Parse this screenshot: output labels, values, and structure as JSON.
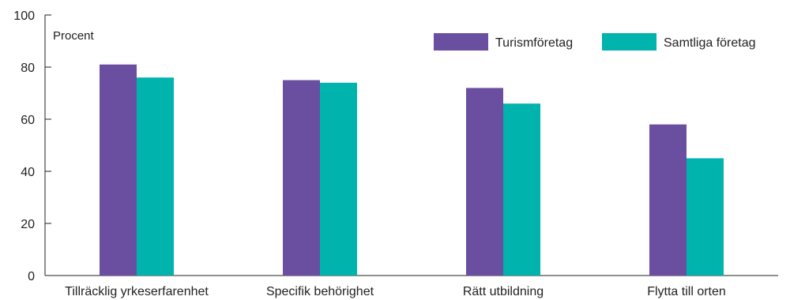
{
  "chart_data": {
    "type": "bar",
    "unit_label": "Procent",
    "categories": [
      "Tillräcklig yrkeserfarenhet",
      "Specifik behörighet",
      "Rätt utbildning",
      "Flytta till orten"
    ],
    "series": [
      {
        "name": "Turismföretag",
        "values": [
          81,
          75,
          72,
          58
        ],
        "color": "#6a4fa1"
      },
      {
        "name": "Samtliga företag",
        "values": [
          76,
          74,
          66,
          45
        ],
        "color": "#00b3ad"
      }
    ],
    "ylim": [
      0,
      100
    ],
    "yticks": [
      0,
      20,
      40,
      60,
      80,
      100
    ],
    "grid": false,
    "legend_position": "top-right"
  }
}
